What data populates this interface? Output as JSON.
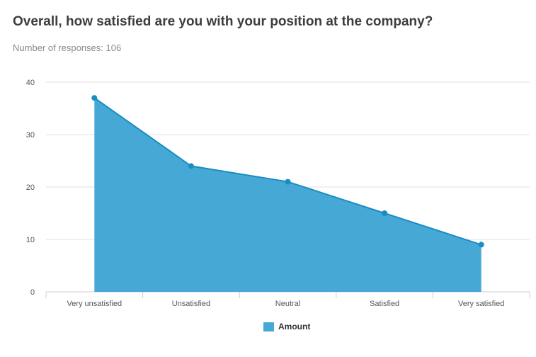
{
  "title": "Overall, how satisfied are you with your position at the company?",
  "subtitle": "Number of responses: 106",
  "colors": {
    "fill": "#46a9d5",
    "line": "#1a8cc4",
    "marker": "#1a8cc4",
    "grid": "#e0e0e0",
    "axis": "#cccccc"
  },
  "chart_data": {
    "type": "area",
    "categories": [
      "Very unsatisfied",
      "Unsatisfied",
      "Neutral",
      "Satisfied",
      "Very satisfied"
    ],
    "series": [
      {
        "name": "Amount",
        "values": [
          37,
          24,
          21,
          15,
          9
        ]
      }
    ],
    "ylim": [
      0,
      40
    ],
    "yticks": [
      0,
      10,
      20,
      30,
      40
    ],
    "grid": true,
    "legend": "bottom-center"
  }
}
